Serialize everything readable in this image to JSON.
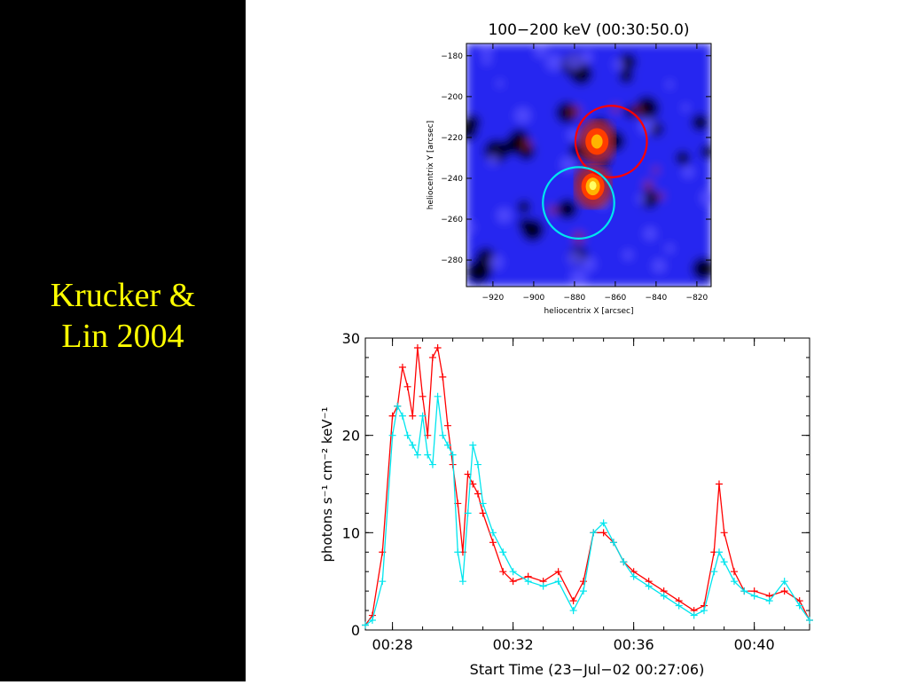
{
  "slide": {
    "title_line1": "Krucker &",
    "title_line2": "Lin 2004",
    "background": "#000000",
    "title_color": "#ffff00"
  },
  "chart_data": [
    {
      "type": "heatmap",
      "title": "100−200 keV (00:30:50.0)",
      "xlabel": "heliocentrix X [arcsec]",
      "ylabel": "heliocentrix Y [arcsec]",
      "xlim": [
        -933,
        -813
      ],
      "ylim": [
        -293,
        -174
      ],
      "xticks": [
        -920,
        -900,
        -880,
        -860,
        -840,
        -820
      ],
      "yticks": [
        -180,
        -200,
        -220,
        -240,
        -260,
        -280
      ],
      "xtick_labels": [
        "−920",
        "−900",
        "−880",
        "−860",
        "−840",
        "−820"
      ],
      "ytick_labels": [
        "−180",
        "−200",
        "−220",
        "−240",
        "−260",
        "−280"
      ],
      "colormap": [
        "#000000",
        "#1e1e8c",
        "#2828f0",
        "#5a50ff",
        "#b42828",
        "#ff3c00",
        "#ffb400",
        "#ffff64"
      ],
      "sources": [
        {
          "x": -869,
          "y": -222,
          "peak": "orange",
          "intensity": 0.8
        },
        {
          "x": -871,
          "y": -244,
          "peak": "yellow",
          "intensity": 1.0
        }
      ],
      "contours": [
        {
          "color": "#ff0000",
          "center_x": -862,
          "center_y": -222,
          "radius": 17.5
        },
        {
          "color": "#00e5ee",
          "center_x": -878,
          "center_y": -252,
          "radius": 17.5
        }
      ]
    },
    {
      "type": "line",
      "xlabel": "Start Time (23−Jul−02 00:27:06)",
      "ylabel": "photons s⁻¹ cm⁻² keV⁻¹",
      "ylim": [
        0,
        30
      ],
      "xlim": [
        "00:27:06",
        "00:41:50"
      ],
      "yticks": [
        0,
        10,
        20,
        30
      ],
      "xtick_labels": [
        "00:28",
        "00:32",
        "00:36",
        "00:40"
      ],
      "marker": "+",
      "series": [
        {
          "color": "#ff0000",
          "x": [
            "00:27:06",
            "00:27:20",
            "00:27:40",
            "00:28:00",
            "00:28:10",
            "00:28:20",
            "00:28:30",
            "00:28:40",
            "00:28:50",
            "00:29:00",
            "00:29:10",
            "00:29:20",
            "00:29:30",
            "00:29:40",
            "00:29:50",
            "00:30:00",
            "00:30:10",
            "00:30:20",
            "00:30:30",
            "00:30:40",
            "00:30:50",
            "00:31:00",
            "00:31:20",
            "00:31:40",
            "00:32:00",
            "00:32:30",
            "00:33:00",
            "00:33:30",
            "00:34:00",
            "00:34:20",
            "00:34:40",
            "00:35:00",
            "00:35:20",
            "00:35:40",
            "00:36:00",
            "00:36:30",
            "00:37:00",
            "00:37:30",
            "00:38:00",
            "00:38:20",
            "00:38:40",
            "00:38:50",
            "00:39:00",
            "00:39:20",
            "00:39:40",
            "00:40:00",
            "00:40:30",
            "00:41:00",
            "00:41:30",
            "00:41:50"
          ],
          "y": [
            0.5,
            1.5,
            8,
            22,
            23,
            27,
            25,
            22,
            29,
            24,
            20,
            28,
            29,
            26,
            21,
            17,
            13,
            8,
            16,
            15,
            14,
            12,
            9,
            6,
            5,
            5.5,
            5,
            6,
            3,
            5,
            10,
            10,
            9,
            7,
            6,
            5,
            4,
            3,
            2,
            2.5,
            8,
            15,
            10,
            6,
            4,
            4,
            3.5,
            4,
            3,
            1
          ]
        },
        {
          "color": "#00e5ee",
          "x": [
            "00:27:06",
            "00:27:20",
            "00:27:40",
            "00:28:00",
            "00:28:10",
            "00:28:20",
            "00:28:30",
            "00:28:40",
            "00:28:50",
            "00:29:00",
            "00:29:10",
            "00:29:20",
            "00:29:30",
            "00:29:40",
            "00:29:50",
            "00:30:00",
            "00:30:10",
            "00:30:20",
            "00:30:30",
            "00:30:40",
            "00:30:50",
            "00:31:00",
            "00:31:20",
            "00:31:40",
            "00:32:00",
            "00:32:30",
            "00:33:00",
            "00:33:30",
            "00:34:00",
            "00:34:20",
            "00:34:40",
            "00:35:00",
            "00:35:20",
            "00:35:40",
            "00:36:00",
            "00:36:30",
            "00:37:00",
            "00:37:30",
            "00:38:00",
            "00:38:20",
            "00:38:40",
            "00:38:50",
            "00:39:00",
            "00:39:20",
            "00:39:40",
            "00:40:00",
            "00:40:30",
            "00:41:00",
            "00:41:30",
            "00:41:50"
          ],
          "y": [
            0.5,
            1,
            5,
            20,
            23,
            22,
            20,
            19,
            18,
            22,
            18,
            17,
            24,
            20,
            19,
            18,
            8,
            5,
            12,
            19,
            17,
            13,
            10,
            8,
            6,
            5,
            4.5,
            5,
            2,
            4,
            10,
            11,
            9,
            7,
            5.5,
            4.5,
            3.5,
            2.5,
            1.5,
            2,
            6,
            8,
            7,
            5,
            4,
            3.5,
            3,
            5,
            2.5,
            1
          ]
        }
      ]
    }
  ]
}
